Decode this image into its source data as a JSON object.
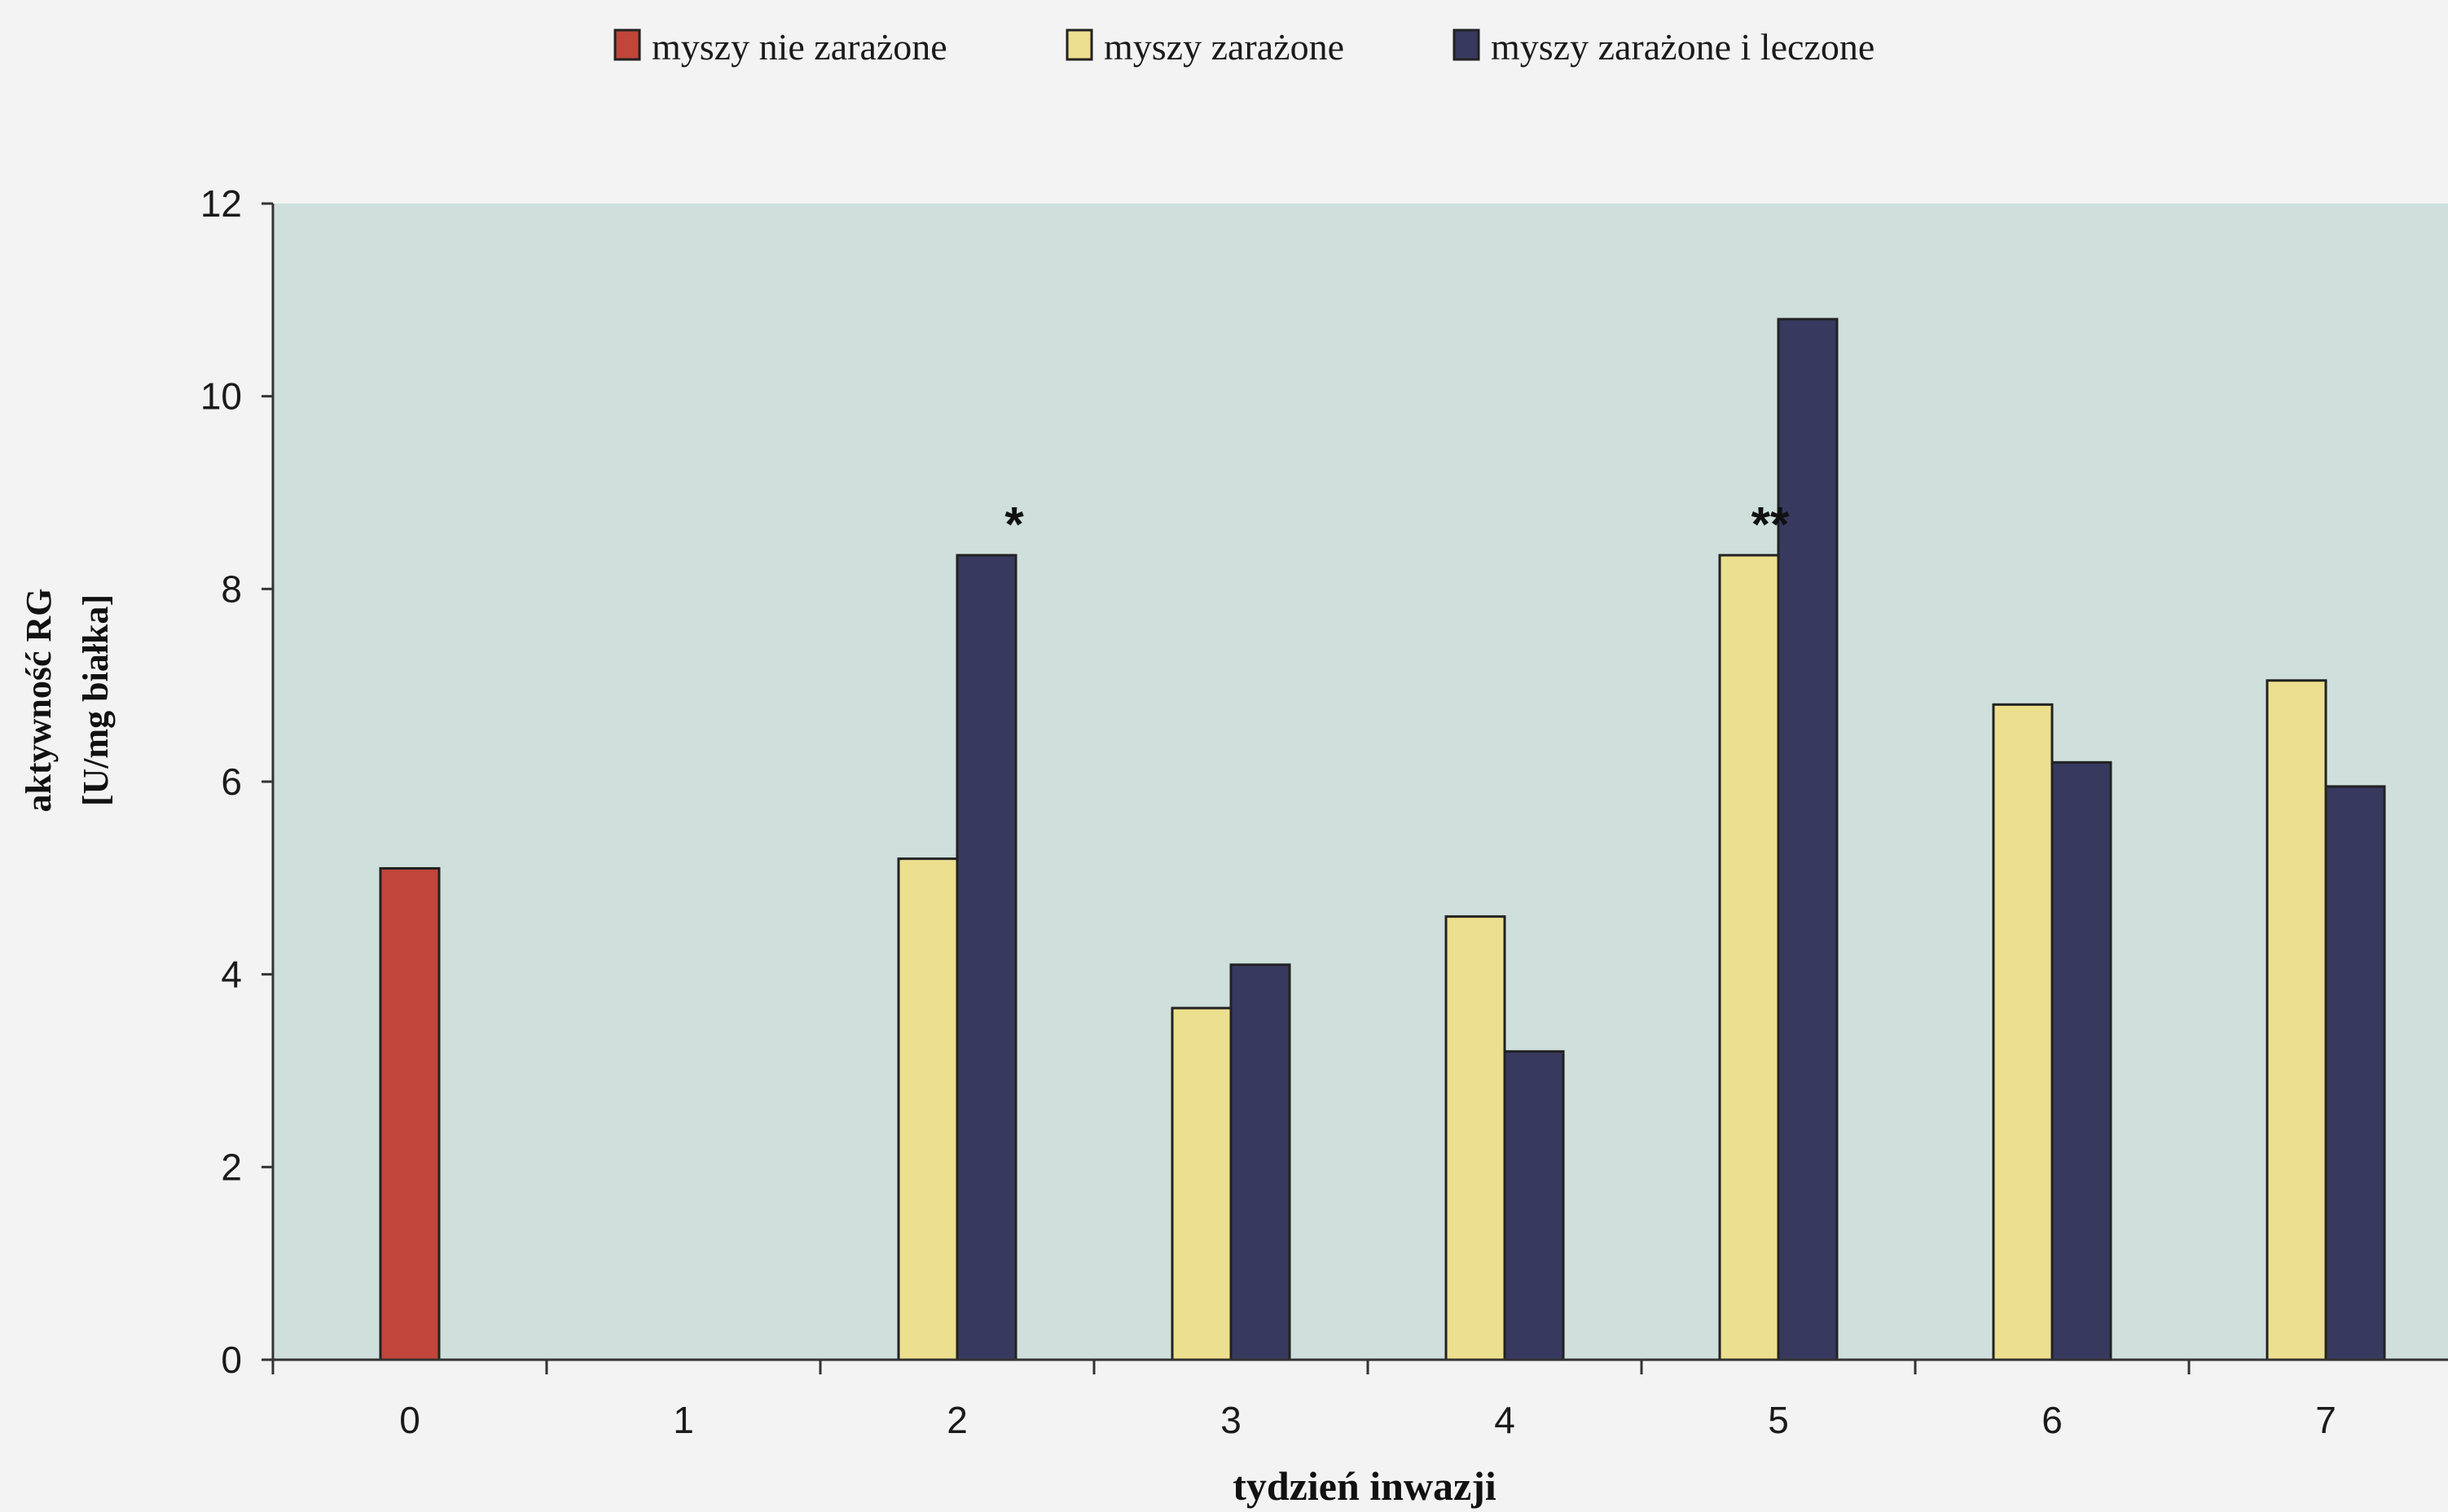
{
  "chart_data": {
    "type": "bar",
    "title": "",
    "xlabel": "tydzień inwazji",
    "ylabel": "aktywność RG",
    "ylabel_unit": "[U/mg białka]",
    "categories": [
      "0",
      "1",
      "2",
      "3",
      "4",
      "5",
      "6",
      "7"
    ],
    "ylim": [
      0,
      12
    ],
    "yticks": [
      0,
      2,
      4,
      6,
      8,
      10,
      12
    ],
    "grid": false,
    "legend_position": "top",
    "series": [
      {
        "name": "myszy nie zarażone",
        "color": "#c0453a",
        "values": [
          5.1,
          null,
          null,
          null,
          null,
          null,
          null,
          null
        ]
      },
      {
        "name": "myszy zarażone",
        "color": "#ece08e",
        "values": [
          null,
          null,
          5.2,
          3.65,
          4.6,
          8.35,
          6.8,
          7.05
        ]
      },
      {
        "name": "myszy zarażone i leczone",
        "color": "#38395f",
        "values": [
          null,
          null,
          8.35,
          4.1,
          3.2,
          10.8,
          6.2,
          5.95
        ]
      }
    ],
    "annotations": [
      {
        "text": "*",
        "category": "2",
        "y": 8.75
      },
      {
        "text": "**",
        "category": "5",
        "y": 8.75
      }
    ],
    "plot_background": "#cfe0dc"
  }
}
